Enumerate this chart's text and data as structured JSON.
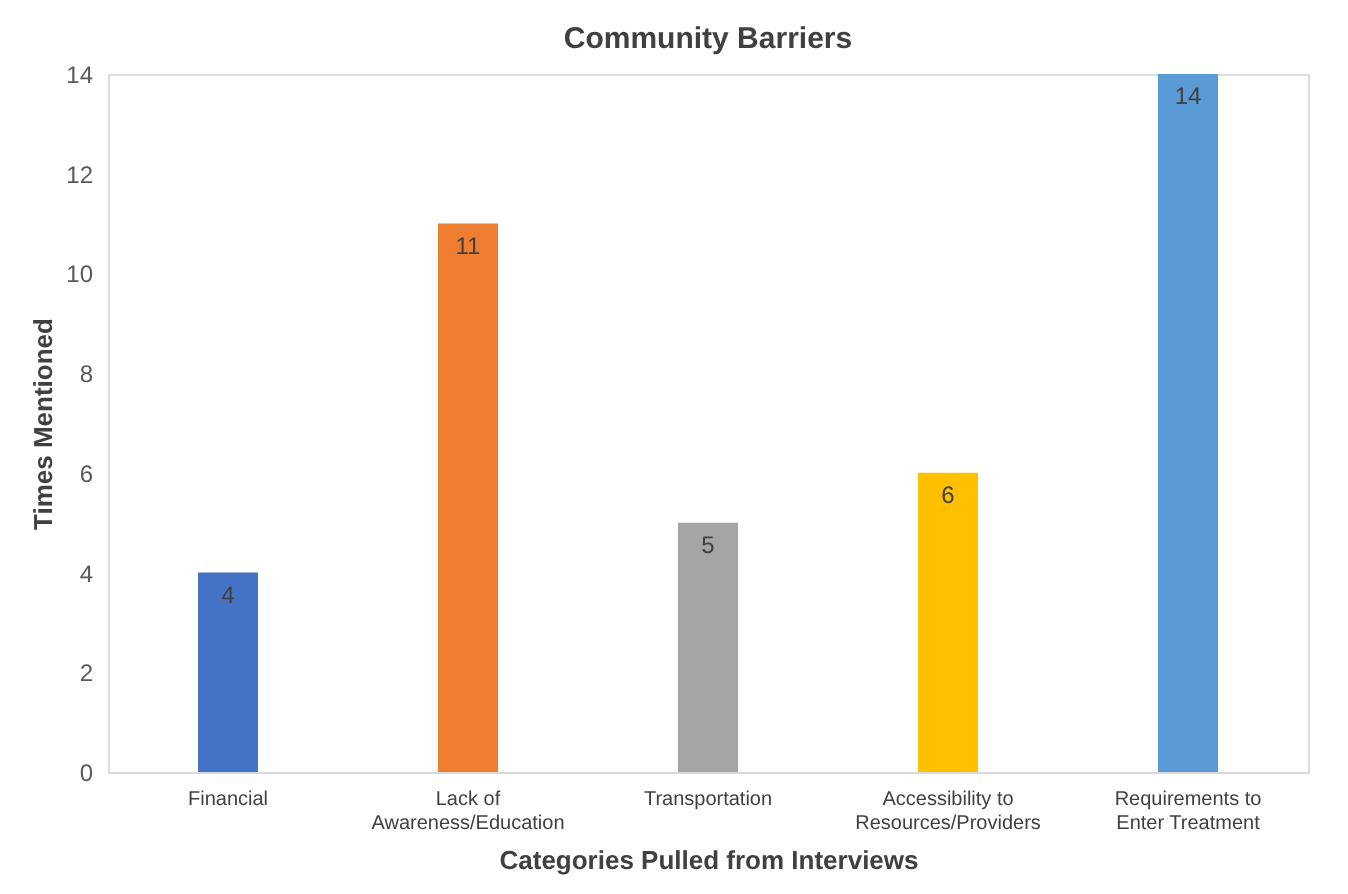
{
  "chart_data": {
    "type": "bar",
    "title": "Community Barriers",
    "xlabel": "Categories Pulled from Interviews",
    "ylabel": "Times Mentioned",
    "categories": [
      "Financial",
      "Lack of Awareness/Education",
      "Transportation",
      "Accessibility to Resources/Providers",
      "Requirements to Enter Treatment"
    ],
    "values": [
      4,
      11,
      5,
      6,
      14
    ],
    "colors": [
      "#4472c4",
      "#ed7d31",
      "#a5a5a5",
      "#ffc000",
      "#5b9bd5"
    ],
    "ylim": [
      0,
      14
    ],
    "yticks": [
      0,
      2,
      4,
      6,
      8,
      10,
      12,
      14
    ],
    "grid": false,
    "data_labels": true
  }
}
